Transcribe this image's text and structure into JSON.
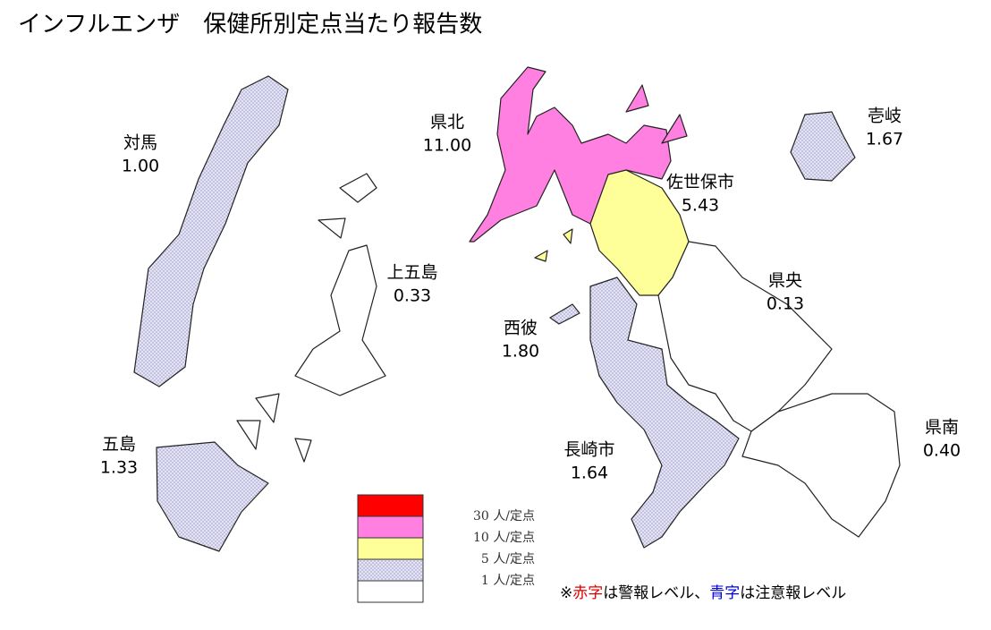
{
  "title": "インフルエンザ　保健所別定点当たり報告数",
  "regions": [
    {
      "name": "対馬",
      "value": "1.00"
    },
    {
      "name": "壱岐",
      "value": "1.67"
    },
    {
      "name": "県北",
      "value": "11.00"
    },
    {
      "name": "佐世保市",
      "value": "5.43"
    },
    {
      "name": "上五島",
      "value": "0.33"
    },
    {
      "name": "県央",
      "value": "0.13"
    },
    {
      "name": "西彼",
      "value": "1.80"
    },
    {
      "name": "五島",
      "value": "1.33"
    },
    {
      "name": "長崎市",
      "value": "1.64"
    },
    {
      "name": "県南",
      "value": "0.40"
    }
  ],
  "legend": [
    "30 人/定点",
    "10 人/定点",
    "5 人/定点",
    "1 人/定点"
  ],
  "note": {
    "mark": "※",
    "red": "赤字",
    "red_text": "は警報レベル、",
    "blue": "青字",
    "blue_text": "は注意報レベル"
  }
}
